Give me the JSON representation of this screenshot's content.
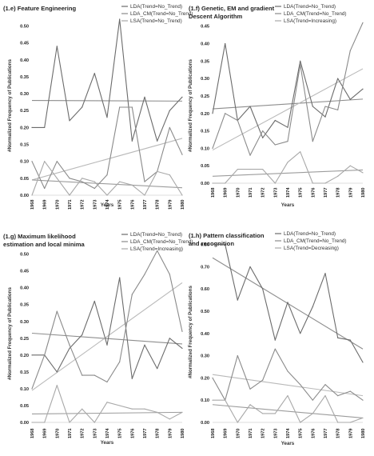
{
  "years": [
    "1968",
    "1969",
    "1970",
    "1971",
    "1972",
    "1973",
    "1974",
    "1975",
    "1976",
    "1977",
    "1978",
    "1979",
    "1980"
  ],
  "chart_data": [
    {
      "type": "line",
      "title_lines": [
        "(1.e) Feature Engineering"
      ],
      "xlabel": "Years",
      "ylabel": "#Normalized Frequency of Publications",
      "ylim": [
        0,
        0.52
      ],
      "yticks": [
        "0.00",
        "0.05",
        "0.10",
        "0.15",
        "0.20",
        "0.25",
        "0.30",
        "0.35",
        "0.40",
        "0.45",
        "0.50"
      ],
      "ytick_values": [
        0,
        0.05,
        0.1,
        0.15,
        0.2,
        0.25,
        0.3,
        0.35,
        0.4,
        0.45,
        0.5
      ],
      "series": [
        {
          "name": "LDA(Trend=No_Trend)",
          "color": "#6b6b6b",
          "values": [
            0.2,
            0.2,
            0.44,
            0.22,
            0.26,
            0.36,
            0.23,
            0.52,
            0.16,
            0.29,
            0.16,
            0.25,
            0.29
          ]
        },
        {
          "name": "LDA_CM(Trend=No_Trend)",
          "color": "#8a8a8a",
          "values": [
            0.1,
            0.02,
            0.1,
            0.05,
            0.04,
            0.02,
            0.06,
            0.26,
            0.26,
            0.04,
            0.07,
            0.2,
            0.12
          ]
        },
        {
          "name": "LSA(Trend=No_Trend)",
          "color": "#a8a8a8",
          "values": [
            0.0,
            0.1,
            0.05,
            0.0,
            0.05,
            0.04,
            0.0,
            0.04,
            0.03,
            0.0,
            0.07,
            0.06,
            0.0
          ]
        }
      ],
      "trendlines": [
        {
          "color": "#8d8d8d",
          "from": 0.28,
          "to": 0.278
        },
        {
          "color": "#b9b9b9",
          "from": 0.045,
          "to": 0.168
        },
        {
          "color": "#9c9c9c",
          "from": 0.045,
          "to": 0.022
        }
      ]
    },
    {
      "type": "line",
      "title_lines": [
        "(1.f) Genetic, EM and gradient",
        "Descent Algorithm"
      ],
      "xlabel": "Years",
      "ylabel": "#Normalized Frequency of Publications",
      "ylim": [
        0,
        0.47
      ],
      "yticks": [
        "0.00",
        "0.05",
        "0.10",
        "0.15",
        "0.20",
        "0.25",
        "0.30",
        "0.35",
        "0.40",
        "0.45"
      ],
      "ytick_values": [
        0,
        0.05,
        0.1,
        0.15,
        0.2,
        0.25,
        0.3,
        0.35,
        0.4,
        0.45
      ],
      "series": [
        {
          "name": "LDA(Trend=No_Trend)",
          "color": "#6b6b6b",
          "values": [
            0.2,
            0.4,
            0.18,
            0.22,
            0.13,
            0.18,
            0.16,
            0.35,
            0.22,
            0.19,
            0.3,
            0.24,
            0.27
          ]
        },
        {
          "name": "LDA_CM(Trend=No_Trend)",
          "color": "#8a8a8a",
          "values": [
            0.1,
            0.2,
            0.18,
            0.08,
            0.15,
            0.11,
            0.12,
            0.34,
            0.12,
            0.22,
            0.21,
            0.38,
            0.46
          ]
        },
        {
          "name": "LSA(Trend=Increasing)",
          "color": "#a8a8a8",
          "values": [
            0.0,
            0.0,
            0.04,
            0.04,
            0.04,
            0.0,
            0.06,
            0.09,
            0.0,
            0.0,
            0.02,
            0.05,
            0.03
          ]
        }
      ],
      "trendlines": [
        {
          "color": "#8d8d8d",
          "from": 0.213,
          "to": 0.241
        },
        {
          "color": "#b9b9b9",
          "from": 0.095,
          "to": 0.328
        },
        {
          "color": "#9c9c9c",
          "from": 0.02,
          "to": 0.038
        }
      ]
    },
    {
      "type": "line",
      "title_lines": [
        "(1.g) Maximum likelihood",
        "estimation and local minima"
      ],
      "xlabel": "Years",
      "ylabel": "#Normalized Frequency of Publications",
      "ylim": [
        0,
        0.53
      ],
      "yticks": [
        "0.00",
        "0.05",
        "0.10",
        "0.15",
        "0.20",
        "0.25",
        "0.30",
        "0.35",
        "0.40",
        "0.45",
        "0.50"
      ],
      "ytick_values": [
        0,
        0.05,
        0.1,
        0.15,
        0.2,
        0.25,
        0.3,
        0.35,
        0.4,
        0.45,
        0.5
      ],
      "series": [
        {
          "name": "LDA(Trend=No_Trend)",
          "color": "#6b6b6b",
          "values": [
            0.2,
            0.2,
            0.15,
            0.22,
            0.26,
            0.36,
            0.23,
            0.43,
            0.13,
            0.23,
            0.16,
            0.25,
            0.22
          ]
        },
        {
          "name": "LDA_CM(Trend=No_Trend)",
          "color": "#8a8a8a",
          "values": [
            0.1,
            0.2,
            0.33,
            0.23,
            0.14,
            0.14,
            0.12,
            0.18,
            0.38,
            0.44,
            0.51,
            0.44,
            0.27
          ]
        },
        {
          "name": "LSA(Trend=Increasing)",
          "color": "#a8a8a8",
          "values": [
            0.0,
            0.0,
            0.11,
            0.0,
            0.04,
            0.0,
            0.06,
            0.05,
            0.04,
            0.04,
            0.03,
            0.01,
            0.03
          ]
        }
      ],
      "trendlines": [
        {
          "color": "#8d8d8d",
          "from": 0.265,
          "to": 0.233
        },
        {
          "color": "#b9b9b9",
          "from": 0.095,
          "to": 0.415
        },
        {
          "color": "#9c9c9c",
          "from": 0.025,
          "to": 0.03
        }
      ]
    },
    {
      "type": "line",
      "title_lines": [
        "(1.h) Pattern classification",
        "and recognition"
      ],
      "xlabel": "Years",
      "ylabel": "#Normalized Frequency of Publications",
      "ylim": [
        0,
        0.82
      ],
      "yticks": [
        "0.00",
        "0.10",
        "0.20",
        "0.30",
        "0.40",
        "0.50",
        "0.60",
        "0.70",
        "0.80"
      ],
      "ytick_values": [
        0,
        0.1,
        0.2,
        0.3,
        0.4,
        0.5,
        0.6,
        0.7,
        0.8
      ],
      "series": [
        {
          "name": "LDA(Trend=No_Trend)",
          "color": "#6b6b6b",
          "values": [
            0.8,
            0.8,
            0.55,
            0.7,
            0.6,
            0.37,
            0.54,
            0.4,
            0.52,
            0.67,
            0.38,
            0.37,
            0.27
          ]
        },
        {
          "name": "LDA_CM(Trend=No_Trend)",
          "color": "#8a8a8a",
          "values": [
            0.2,
            0.1,
            0.3,
            0.15,
            0.19,
            0.33,
            0.23,
            0.17,
            0.1,
            0.17,
            0.12,
            0.14,
            0.1
          ]
        },
        {
          "name": "LSA(Trend=Decreasing)",
          "color": "#a8a8a8",
          "values": [
            0.1,
            0.1,
            0.0,
            0.08,
            0.04,
            0.04,
            0.12,
            0.0,
            0.04,
            0.12,
            0.0,
            0.0,
            0.02
          ]
        }
      ],
      "trendlines": [
        {
          "color": "#8d8d8d",
          "from": 0.74,
          "to": 0.33
        },
        {
          "color": "#b9b9b9",
          "from": 0.215,
          "to": 0.12
        },
        {
          "color": "#9c9c9c",
          "from": 0.08,
          "to": 0.02
        }
      ]
    }
  ]
}
